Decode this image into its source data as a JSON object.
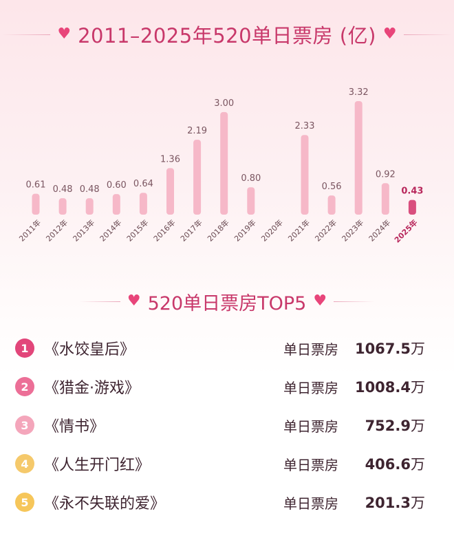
{
  "title": "2011–2025年520单日票房 (亿)",
  "colors": {
    "bar": "#f6b8c8",
    "bar_highlight": "#d94f7e",
    "accent": "#c8386a",
    "heart": "#e8457a"
  },
  "chart_data": {
    "type": "bar",
    "title": "2011–2025年520单日票房 (亿)",
    "categories": [
      "2011年",
      "2012年",
      "2013年",
      "2014年",
      "2015年",
      "2016年",
      "2017年",
      "2018年",
      "2019年",
      "2020年",
      "2021年",
      "2022年",
      "2023年",
      "2024年",
      "2025年"
    ],
    "values": [
      0.61,
      0.48,
      0.48,
      0.6,
      0.64,
      1.36,
      2.19,
      3.0,
      0.8,
      null,
      2.33,
      0.56,
      3.32,
      0.92,
      0.43
    ],
    "value_labels": [
      "0.61",
      "0.48",
      "0.48",
      "0.60",
      "0.64",
      "1.36",
      "2.19",
      "3.00",
      "0.80",
      "",
      "2.33",
      "0.56",
      "3.32",
      "0.92",
      "0.43"
    ],
    "highlight_category": "2025年",
    "ylim": [
      0,
      3.32
    ],
    "grid": false,
    "legend": "none"
  },
  "top5": {
    "title": "520单日票房TOP5",
    "items": [
      {
        "rank": "1",
        "movie": "《水饺皇后》",
        "label": "单日票房",
        "value": "1067.5",
        "unit": "万",
        "color": "#e2467a"
      },
      {
        "rank": "2",
        "movie": "《猎金·游戏》",
        "label": "单日票房",
        "value": "1008.4",
        "unit": "万",
        "color": "#ec6f97"
      },
      {
        "rank": "3",
        "movie": "《情书》",
        "label": "单日票房",
        "value": "752.9",
        "unit": "万",
        "color": "#f4a6bb"
      },
      {
        "rank": "4",
        "movie": "《人生开门红》",
        "label": "单日票房",
        "value": "406.6",
        "unit": "万",
        "color": "#f5c96b"
      },
      {
        "rank": "5",
        "movie": "《永不失联的爱》",
        "label": "单日票房",
        "value": "201.3",
        "unit": "万",
        "color": "#f6c65a"
      }
    ]
  }
}
